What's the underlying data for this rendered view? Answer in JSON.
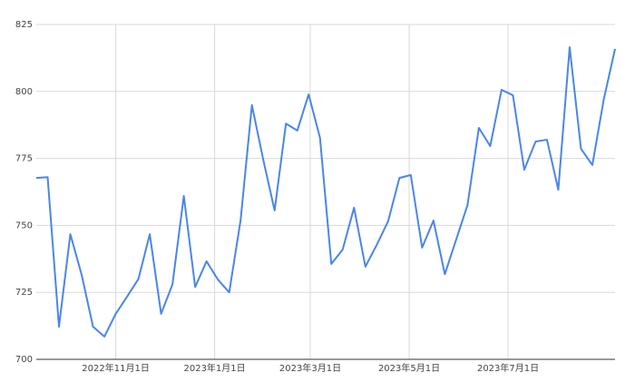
{
  "chart_data": {
    "type": "line",
    "x": [
      "2022-09-13",
      "2022-09-20",
      "2022-09-27",
      "2022-10-04",
      "2022-10-11",
      "2022-10-18",
      "2022-10-25",
      "2022-11-01",
      "2022-11-08",
      "2022-11-15",
      "2022-11-22",
      "2022-11-29",
      "2022-12-06",
      "2022-12-13",
      "2022-12-20",
      "2022-12-27",
      "2023-01-03",
      "2023-01-10",
      "2023-01-17",
      "2023-01-24",
      "2023-01-31",
      "2023-02-07",
      "2023-02-14",
      "2023-02-21",
      "2023-02-28",
      "2023-03-07",
      "2023-03-14",
      "2023-03-21",
      "2023-03-28",
      "2023-04-04",
      "2023-04-11",
      "2023-04-18",
      "2023-04-25",
      "2023-05-02",
      "2023-05-09",
      "2023-05-16",
      "2023-05-23",
      "2023-05-30",
      "2023-06-06",
      "2023-06-13",
      "2023-06-20",
      "2023-06-27",
      "2023-07-04",
      "2023-07-11",
      "2023-07-18",
      "2023-07-25",
      "2023-08-01",
      "2023-08-08",
      "2023-08-15",
      "2023-08-22",
      "2023-08-29",
      "2023-09-05"
    ],
    "values": [
      767.7,
      768,
      712.2,
      746.7,
      731.5,
      712.2,
      708.5,
      717,
      723.4,
      730,
      746.7,
      717,
      728,
      761,
      727,
      736.6,
      729.8,
      725,
      751.8,
      794.9,
      774.5,
      755.6,
      788,
      785.4,
      798.9,
      782.7,
      735.6,
      741,
      756.6,
      734.6,
      742.7,
      751.5,
      767.7,
      768.8,
      741.7,
      751.8,
      731.8,
      744.7,
      757.6,
      786.4,
      779.6,
      800.6,
      798.6,
      770.8,
      781.3,
      782,
      763.3,
      816.5,
      778.6,
      772.5,
      796.9,
      815.9
    ],
    "color": "#4a86e8",
    "xlim": [
      "2022-09-13",
      "2023-09-05"
    ],
    "xticks": [
      {
        "value": "2022-11-01",
        "label": "2022年11月1日"
      },
      {
        "value": "2023-01-01",
        "label": "2023年1月1日"
      },
      {
        "value": "2023-03-01",
        "label": "2023年3月1日"
      },
      {
        "value": "2023-05-01",
        "label": "2023年5月1日"
      },
      {
        "value": "2023-07-01",
        "label": "2023年7月1日"
      }
    ],
    "ylim": [
      700,
      825
    ],
    "yticks": [
      700,
      725,
      750,
      775,
      800,
      825
    ],
    "grid": true
  }
}
